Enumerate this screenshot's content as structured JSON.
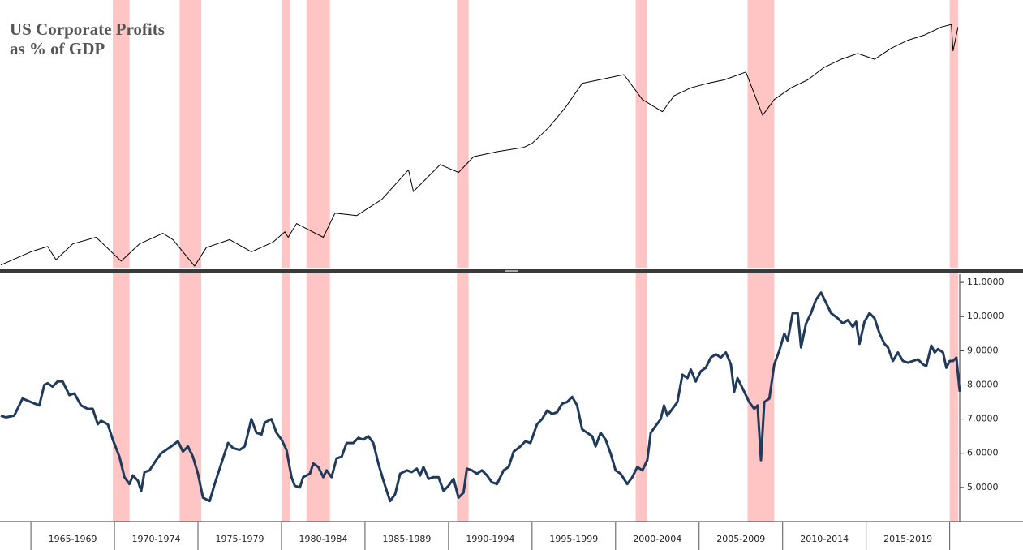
{
  "chart_data": [
    {
      "type": "line",
      "title": [
        "US Corporate Profits",
        "as % of GDP"
      ],
      "xlim": [
        1963.15,
        2020.6
      ],
      "ylim": [
        0,
        100
      ],
      "series": [
        {
          "color": "#000000",
          "x": [
            1963.2,
            1965,
            1966,
            1966.5,
            1967.5,
            1968.9,
            1970.4,
            1971.5,
            1972.9,
            1973.5,
            1974.8,
            1975.5,
            1976.9,
            1978.2,
            1979.5,
            1980.2,
            1980.4,
            1980.9,
            1982.5,
            1983.2,
            1984.5,
            1986,
            1987.6,
            1987.9,
            1989.5,
            1990.6,
            1991.5,
            1993,
            1994.5,
            1995,
            1996,
            1997,
            1998,
            1999,
            2000.5,
            2001.6,
            2002.8,
            2003.5,
            2004.5,
            2005.5,
            2006.5,
            2007.8,
            2008.8,
            2009.5,
            2010.5,
            2011.5,
            2012.5,
            2013.5,
            2014.5,
            2015.5,
            2016.5,
            2017.5,
            2018.5,
            2019.5,
            2020.1,
            2020.2,
            2020.5
          ],
          "values": [
            1,
            6,
            8,
            3,
            9,
            11.5,
            2.5,
            9,
            13,
            10.6,
            0.6,
            7.6,
            10.6,
            6,
            9.7,
            13.6,
            11.5,
            16.7,
            11.5,
            20.6,
            19.7,
            25.8,
            37,
            28.8,
            39,
            36,
            42,
            44,
            45.5,
            47,
            53,
            60.6,
            69.7,
            71,
            73,
            63.6,
            59,
            65,
            68,
            69.7,
            71,
            74,
            57.6,
            63.6,
            68,
            71,
            75.8,
            78.8,
            81,
            78.8,
            83,
            86,
            88,
            91,
            92,
            82,
            91
          ]
        }
      ]
    },
    {
      "type": "line",
      "xlim": [
        1963.15,
        2020.6
      ],
      "ylim": [
        4.0,
        11.24
      ],
      "yticks": [
        4,
        {
          "value": 5,
          "label": "5.0000"
        },
        {
          "value": 6,
          "label": "6.0000"
        },
        {
          "value": 7,
          "label": "7.0000"
        },
        {
          "value": 8,
          "label": "8.0000"
        },
        {
          "value": 9,
          "label": "9.0000"
        },
        {
          "value": 10,
          "label": "10.0000"
        },
        {
          "value": 11,
          "label": "11.0000"
        }
      ],
      "xticks": [
        {
          "value": 1967.5,
          "label": "1965-1969"
        },
        {
          "value": 1972.5,
          "label": "1970-1974"
        },
        {
          "value": 1977.5,
          "label": "1975-1979"
        },
        {
          "value": 1982.5,
          "label": "1980-1984"
        },
        {
          "value": 1987.5,
          "label": "1985-1989"
        },
        {
          "value": 1992.5,
          "label": "1990-1994"
        },
        {
          "value": 1997.5,
          "label": "1995-1999"
        },
        {
          "value": 2002.5,
          "label": "2000-2004"
        },
        {
          "value": 2007.5,
          "label": "2005-2009"
        },
        {
          "value": 2012.5,
          "label": "2010-2014"
        },
        {
          "value": 2017.5,
          "label": "2015-2019"
        }
      ],
      "xtick_marks": [
        1965,
        1970,
        1975,
        1980,
        1985,
        1990,
        1995,
        2000,
        2005,
        2010,
        2015,
        2020
      ],
      "shaded_periods": [
        [
          1969.9,
          1970.9
        ],
        [
          1973.9,
          1975.2
        ],
        [
          1980.0,
          1980.5
        ],
        [
          1981.5,
          1982.9
        ],
        [
          1990.5,
          1991.2
        ],
        [
          2001.2,
          2001.9
        ],
        [
          2007.9,
          2009.5
        ],
        [
          2020.0,
          2020.5
        ]
      ],
      "shade_color": "#ffc4c4",
      "series": [
        {
          "color": "#1f3a5a",
          "x": [
            1963.2,
            1963.5,
            1964,
            1964.5,
            1965,
            1965.5,
            1965.8,
            1966,
            1966.3,
            1966.6,
            1966.9,
            1967.3,
            1967.6,
            1968,
            1968.4,
            1968.7,
            1969,
            1969.2,
            1969.6,
            1969.9,
            1970.3,
            1970.6,
            1970.9,
            1971.1,
            1971.4,
            1971.6,
            1971.8,
            1972.1,
            1972.5,
            1972.8,
            1973.1,
            1973.4,
            1973.8,
            1974.1,
            1974.4,
            1974.7,
            1975,
            1975.3,
            1975.7,
            1976,
            1976.4,
            1976.8,
            1977.1,
            1977.5,
            1977.8,
            1978.2,
            1978.5,
            1978.8,
            1979,
            1979.4,
            1979.7,
            1980,
            1980.3,
            1980.6,
            1980.8,
            1981.1,
            1981.3,
            1981.7,
            1981.9,
            1982.2,
            1982.5,
            1982.7,
            1983,
            1983.3,
            1983.6,
            1983.9,
            1984.3,
            1984.6,
            1984.9,
            1985.2,
            1985.5,
            1985.8,
            1986.1,
            1986.5,
            1986.8,
            1987.1,
            1987.5,
            1987.8,
            1988.1,
            1988.3,
            1988.5,
            1988.8,
            1989.1,
            1989.4,
            1989.7,
            1990,
            1990.3,
            1990.6,
            1990.9,
            1991.1,
            1991.4,
            1991.7,
            1992,
            1992.3,
            1992.6,
            1992.9,
            1993.3,
            1993.6,
            1993.9,
            1994.3,
            1994.6,
            1994.9,
            1995.3,
            1995.6,
            1995.9,
            1996.2,
            1996.5,
            1996.8,
            1997.1,
            1997.4,
            1997.7,
            1998,
            1998.3,
            1998.6,
            1998.8,
            1999.1,
            1999.4,
            1999.7,
            2000,
            2000.3,
            2000.7,
            2001,
            2001.3,
            2001.6,
            2001.9,
            2002.1,
            2002.4,
            2002.7,
            2002.9,
            2003.1,
            2003.4,
            2003.7,
            2004,
            2004.3,
            2004.5,
            2004.8,
            2005.1,
            2005.4,
            2005.7,
            2006,
            2006.3,
            2006.6,
            2006.9,
            2007.1,
            2007.3,
            2007.7,
            2008,
            2008.3,
            2008.5,
            2008.7,
            2008.9,
            2009.2,
            2009.5,
            2009.8,
            2010.1,
            2010.3,
            2010.6,
            2010.9,
            2011.1,
            2011.4,
            2011.7,
            2012,
            2012.3,
            2012.6,
            2012.9,
            2013.3,
            2013.6,
            2013.9,
            2014.2,
            2014.4,
            2014.6,
            2014.9,
            2015.2,
            2015.5,
            2015.8,
            2016.1,
            2016.3,
            2016.6,
            2016.9,
            2017.2,
            2017.5,
            2017.8,
            2018.1,
            2018.4,
            2018.6,
            2018.9,
            2019.1,
            2019.3,
            2019.6,
            2019.8,
            2020,
            2020.2,
            2020.4,
            2020.6
          ],
          "values": [
            7.1,
            7.05,
            7.1,
            7.6,
            7.5,
            7.4,
            8.0,
            8.05,
            7.95,
            8.1,
            8.1,
            7.7,
            7.75,
            7.4,
            7.3,
            7.3,
            6.85,
            6.95,
            6.85,
            6.4,
            5.9,
            5.3,
            5.1,
            5.35,
            5.2,
            4.9,
            5.45,
            5.5,
            5.8,
            6.0,
            6.1,
            6.2,
            6.35,
            6.05,
            6.2,
            5.9,
            5.4,
            4.7,
            4.6,
            5.1,
            5.7,
            6.3,
            6.15,
            6.1,
            6.2,
            7.0,
            6.6,
            6.55,
            6.9,
            7.0,
            6.6,
            6.4,
            6.1,
            5.3,
            5.05,
            5.0,
            5.3,
            5.4,
            5.7,
            5.6,
            5.3,
            5.5,
            5.3,
            5.85,
            5.9,
            6.3,
            6.3,
            6.45,
            6.4,
            6.5,
            6.3,
            5.7,
            5.2,
            4.6,
            4.8,
            5.4,
            5.5,
            5.45,
            5.55,
            5.35,
            5.6,
            5.25,
            5.3,
            5.3,
            4.9,
            5.05,
            5.25,
            4.7,
            4.85,
            5.55,
            5.5,
            5.4,
            5.5,
            5.35,
            5.15,
            5.1,
            5.5,
            5.6,
            6.05,
            6.2,
            6.35,
            6.3,
            6.85,
            7.0,
            7.25,
            7.15,
            7.2,
            7.45,
            7.5,
            7.65,
            7.4,
            6.7,
            6.6,
            6.5,
            6.2,
            6.6,
            6.4,
            6.0,
            5.5,
            5.4,
            5.1,
            5.3,
            5.6,
            5.5,
            5.8,
            6.6,
            6.8,
            7.0,
            7.4,
            7.1,
            7.3,
            7.5,
            8.3,
            8.2,
            8.45,
            8.1,
            8.4,
            8.5,
            8.8,
            8.9,
            8.8,
            8.95,
            8.6,
            7.8,
            8.2,
            7.8,
            7.5,
            7.3,
            7.4,
            5.8,
            7.5,
            7.6,
            8.6,
            9.0,
            9.5,
            9.3,
            10.1,
            10.1,
            9.1,
            9.8,
            10.1,
            10.5,
            10.7,
            10.4,
            10.1,
            9.95,
            9.8,
            9.9,
            9.7,
            9.85,
            9.2,
            9.85,
            10.1,
            9.95,
            9.5,
            9.2,
            9.1,
            8.7,
            8.95,
            8.7,
            8.65,
            8.7,
            8.75,
            8.6,
            8.55,
            9.15,
            8.95,
            9.05,
            8.95,
            8.5,
            8.7,
            8.7,
            8.8,
            7.8
          ]
        }
      ]
    }
  ]
}
